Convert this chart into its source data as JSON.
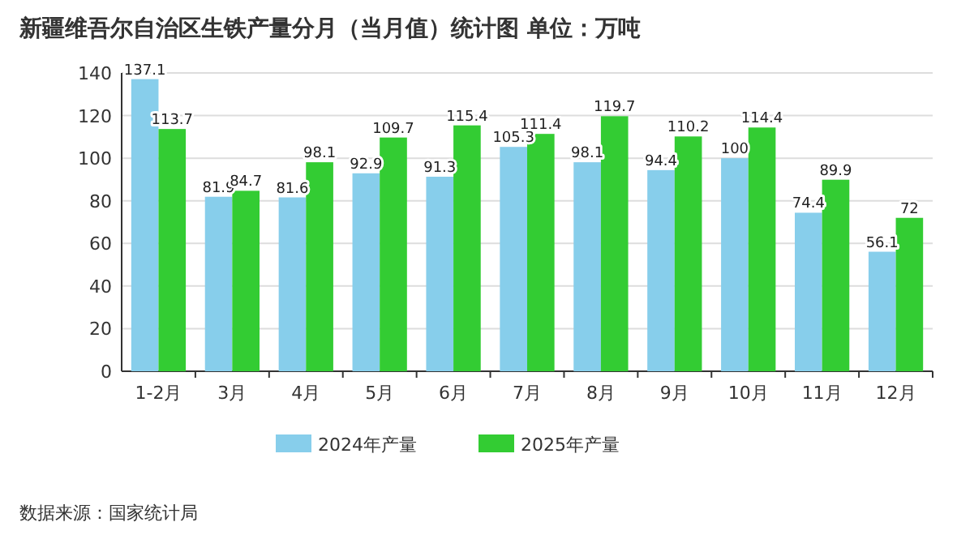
{
  "chart_data": {
    "type": "bar",
    "title": "新疆维吾尔自治区生铁产量分月（当月值）统计图 单位：万吨",
    "categories": [
      "1-2月",
      "3月",
      "4月",
      "5月",
      "6月",
      "7月",
      "8月",
      "9月",
      "10月",
      "11月",
      "12月"
    ],
    "series": [
      {
        "name": "2024年产量",
        "color": "#87ceeb",
        "values": [
          137.1,
          81.9,
          81.6,
          92.9,
          91.3,
          105.3,
          98.1,
          94.4,
          100,
          74.4,
          56.1
        ]
      },
      {
        "name": "2025年产量",
        "color": "#33cc33",
        "values": [
          113.7,
          84.7,
          98.1,
          109.7,
          115.4,
          111.4,
          119.7,
          110.2,
          114.4,
          89.9,
          72
        ]
      }
    ],
    "ylim": [
      0,
      140
    ],
    "yticks": [
      0,
      20,
      40,
      60,
      80,
      100,
      120,
      140
    ],
    "grid": "y",
    "legend": "bottom",
    "data_labels": true,
    "annotations": [
      "数据来源：国家统计局"
    ]
  }
}
